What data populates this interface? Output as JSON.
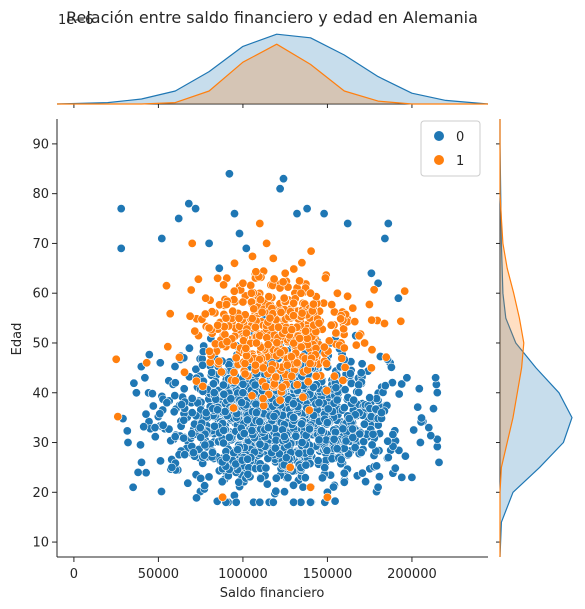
{
  "chart_data": {
    "type": "scatter",
    "title": "Relación entre saldo financiero y edad en Alemania",
    "offset_text": "1e−6",
    "xlabel": "Saldo financiero",
    "ylabel": "Edad",
    "xlim": [
      -10000,
      245000
    ],
    "ylim": [
      7,
      95
    ],
    "xticks": [
      0,
      50000,
      100000,
      150000,
      200000
    ],
    "xtick_labels": [
      "0",
      "50000",
      "100000",
      "150000",
      "200000"
    ],
    "yticks": [
      10,
      20,
      30,
      40,
      50,
      60,
      70,
      80,
      90
    ],
    "ytick_labels": [
      "10",
      "20",
      "30",
      "40",
      "50",
      "60",
      "70",
      "80",
      "90"
    ],
    "legend": {
      "placement": "top-right",
      "entries": [
        "0",
        "1"
      ]
    },
    "grid": false,
    "colors": {
      "0": "#1f77b4",
      "1": "#ff7f0e"
    },
    "series": [
      {
        "name": "0",
        "color": "#1f77b4",
        "cluster": {
          "x_mean": 122000,
          "x_sd": 32000,
          "y_mean": 35,
          "y_sd": 6.5,
          "approx_n": 1450
        },
        "points": [
          [
            28000,
            77
          ],
          [
            28000,
            69
          ],
          [
            32000,
            30
          ],
          [
            35000,
            21
          ],
          [
            38000,
            24
          ],
          [
            40000,
            26
          ],
          [
            37000,
            40
          ],
          [
            42000,
            43
          ],
          [
            52000,
            71
          ],
          [
            58000,
            25
          ],
          [
            62000,
            75
          ],
          [
            68000,
            78
          ],
          [
            72000,
            77
          ],
          [
            80000,
            70
          ],
          [
            86000,
            65
          ],
          [
            92000,
            84
          ],
          [
            95000,
            76
          ],
          [
            98000,
            72
          ],
          [
            102000,
            69
          ],
          [
            122000,
            81
          ],
          [
            124000,
            83
          ],
          [
            132000,
            76
          ],
          [
            138000,
            77
          ],
          [
            148000,
            76
          ],
          [
            162000,
            74
          ],
          [
            186000,
            74
          ],
          [
            184000,
            71
          ],
          [
            180000,
            62
          ],
          [
            176000,
            64
          ],
          [
            192000,
            59
          ],
          [
            197000,
            43
          ],
          [
            214000,
            43
          ],
          [
            216000,
            26
          ],
          [
            210000,
            33
          ],
          [
            205000,
            30
          ],
          [
            200000,
            23
          ],
          [
            194000,
            23
          ],
          [
            186000,
            27
          ],
          [
            180000,
            21
          ],
          [
            90000,
            18
          ],
          [
            96000,
            18
          ],
          [
            110000,
            18
          ],
          [
            118000,
            18
          ],
          [
            130000,
            18
          ],
          [
            140000,
            18
          ],
          [
            150000,
            20
          ],
          [
            160000,
            22
          ],
          [
            170000,
            28
          ],
          [
            48000,
            33
          ],
          [
            55000,
            38
          ],
          [
            60000,
            42
          ],
          [
            65000,
            47
          ],
          [
            70000,
            36
          ],
          [
            75000,
            31
          ],
          [
            82000,
            28
          ],
          [
            88000,
            44
          ],
          [
            100000,
            40
          ],
          [
            108000,
            36
          ],
          [
            115000,
            33
          ],
          [
            120000,
            38
          ],
          [
            125000,
            42
          ],
          [
            130000,
            35
          ],
          [
            135000,
            30
          ],
          [
            140000,
            45
          ],
          [
            145000,
            38
          ],
          [
            150000,
            34
          ],
          [
            155000,
            41
          ],
          [
            160000,
            37
          ],
          [
            165000,
            31
          ],
          [
            170000,
            44
          ],
          [
            175000,
            39
          ],
          [
            182000,
            36
          ]
        ]
      },
      {
        "name": "1",
        "color": "#ff7f0e",
        "cluster": {
          "x_mean": 120000,
          "x_sd": 24000,
          "y_mean": 52,
          "y_sd": 6,
          "approx_n": 450
        },
        "points": [
          [
            70000,
            70
          ],
          [
            78000,
            59
          ],
          [
            80000,
            53
          ],
          [
            85000,
            63
          ],
          [
            88000,
            19
          ],
          [
            95000,
            66
          ],
          [
            100000,
            62
          ],
          [
            105000,
            60
          ],
          [
            110000,
            74
          ],
          [
            114000,
            70
          ],
          [
            118000,
            67
          ],
          [
            125000,
            64
          ],
          [
            130000,
            58
          ],
          [
            135000,
            56
          ],
          [
            140000,
            60
          ],
          [
            145000,
            54
          ],
          [
            150000,
            19
          ],
          [
            155000,
            52
          ],
          [
            160000,
            49
          ],
          [
            165000,
            57
          ],
          [
            172000,
            50
          ],
          [
            176000,
            45
          ],
          [
            140000,
            21
          ],
          [
            128000,
            25
          ],
          [
            112000,
            45
          ],
          [
            108000,
            50
          ],
          [
            116000,
            55
          ],
          [
            122000,
            48
          ],
          [
            132000,
            46
          ],
          [
            102000,
            52
          ],
          [
            96000,
            47
          ],
          [
            90000,
            55
          ]
        ]
      }
    ],
    "marginal_x": {
      "series": [
        {
          "name": "0",
          "x": [
            -10000,
            20000,
            40000,
            60000,
            80000,
            100000,
            120000,
            140000,
            160000,
            180000,
            200000,
            220000,
            245000
          ],
          "density": [
            0,
            0.02,
            0.07,
            0.18,
            0.45,
            0.8,
            0.97,
            0.92,
            0.68,
            0.38,
            0.15,
            0.05,
            0
          ]
        },
        {
          "name": "1",
          "x": [
            -10000,
            40000,
            60000,
            80000,
            100000,
            120000,
            140000,
            160000,
            180000,
            200000,
            245000
          ],
          "density": [
            0,
            0,
            0.02,
            0.18,
            0.58,
            0.83,
            0.55,
            0.18,
            0.04,
            0,
            0
          ]
        }
      ]
    },
    "marginal_y": {
      "series": [
        {
          "name": "0",
          "y": [
            7,
            14,
            20,
            25,
            30,
            35,
            40,
            45,
            50,
            55,
            60,
            70,
            80,
            90,
            95
          ],
          "density": [
            0,
            0.02,
            0.18,
            0.55,
            0.88,
            1.0,
            0.82,
            0.5,
            0.22,
            0.08,
            0.04,
            0.02,
            0.01,
            0,
            0
          ]
        },
        {
          "name": "1",
          "y": [
            7,
            20,
            25,
            30,
            35,
            40,
            45,
            50,
            55,
            60,
            65,
            70,
            75,
            80,
            95
          ],
          "density": [
            0,
            0,
            0.02,
            0.1,
            0.18,
            0.24,
            0.3,
            0.33,
            0.27,
            0.19,
            0.1,
            0.04,
            0.02,
            0,
            0
          ]
        }
      ]
    }
  }
}
